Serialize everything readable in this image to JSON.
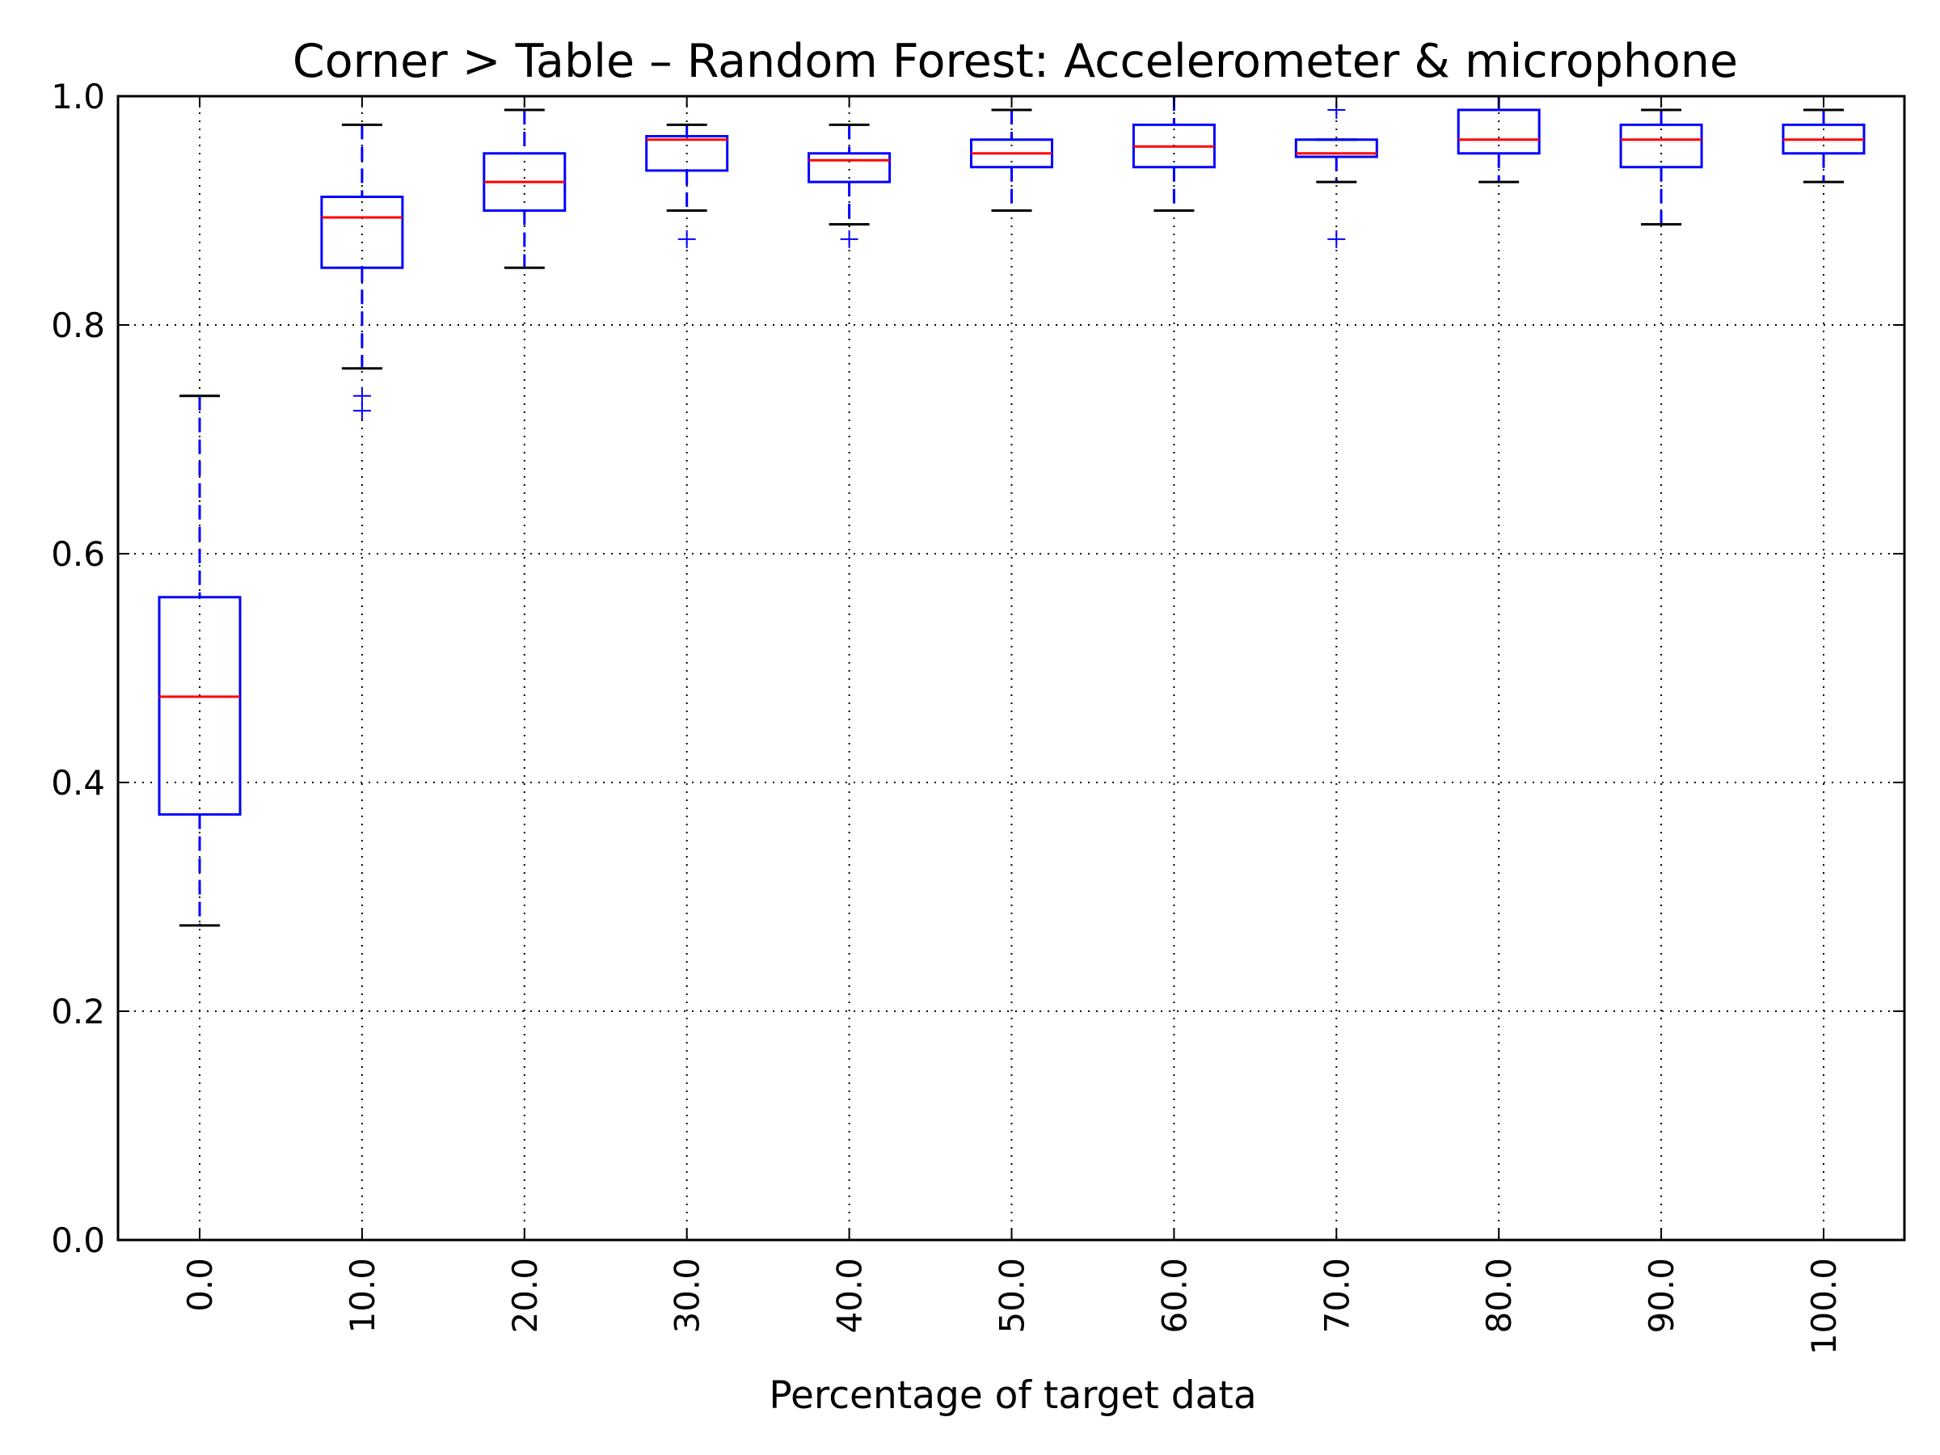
{
  "chart_data": {
    "type": "boxplot",
    "title": "Corner > Table – Random Forest: Accelerometer & microphone",
    "xlabel": "Percentage of target data",
    "ylabel": "",
    "ylim": [
      0.0,
      1.0
    ],
    "yticks": [
      "0.0",
      "0.2",
      "0.4",
      "0.6",
      "0.8",
      "1.0"
    ],
    "grid": true,
    "categories": [
      "0.0",
      "10.0",
      "20.0",
      "30.0",
      "40.0",
      "50.0",
      "60.0",
      "70.0",
      "80.0",
      "90.0",
      "100.0"
    ],
    "boxes": [
      {
        "whislo": 0.275,
        "q1": 0.372,
        "med": 0.475,
        "q3": 0.562,
        "whishi": 0.738,
        "fliers": []
      },
      {
        "whislo": 0.762,
        "q1": 0.85,
        "med": 0.894,
        "q3": 0.912,
        "whishi": 0.975,
        "fliers": [
          0.738,
          0.725
        ]
      },
      {
        "whislo": 0.85,
        "q1": 0.9,
        "med": 0.925,
        "q3": 0.95,
        "whishi": 0.988,
        "fliers": []
      },
      {
        "whislo": 0.9,
        "q1": 0.935,
        "med": 0.962,
        "q3": 0.965,
        "whishi": 0.975,
        "fliers": [
          0.875
        ]
      },
      {
        "whislo": 0.888,
        "q1": 0.925,
        "med": 0.944,
        "q3": 0.95,
        "whishi": 0.975,
        "fliers": [
          0.875
        ]
      },
      {
        "whislo": 0.9,
        "q1": 0.938,
        "med": 0.95,
        "q3": 0.962,
        "whishi": 0.988,
        "fliers": []
      },
      {
        "whislo": 0.9,
        "q1": 0.938,
        "med": 0.956,
        "q3": 0.975,
        "whishi": 1.0,
        "fliers": []
      },
      {
        "whislo": 0.925,
        "q1": 0.947,
        "med": 0.95,
        "q3": 0.962,
        "whishi": 0.962,
        "fliers": [
          0.988,
          0.875
        ]
      },
      {
        "whislo": 0.925,
        "q1": 0.95,
        "med": 0.962,
        "q3": 0.988,
        "whishi": 1.0,
        "fliers": []
      },
      {
        "whislo": 0.888,
        "q1": 0.938,
        "med": 0.962,
        "q3": 0.975,
        "whishi": 0.988,
        "fliers": []
      },
      {
        "whislo": 0.925,
        "q1": 0.95,
        "med": 0.962,
        "q3": 0.975,
        "whishi": 0.988,
        "fliers": []
      }
    ],
    "colors": {
      "box": "#0000ff",
      "median": "#ff0000",
      "cap": "#000000",
      "flier": "#0000ff",
      "grid": "#000000"
    }
  }
}
